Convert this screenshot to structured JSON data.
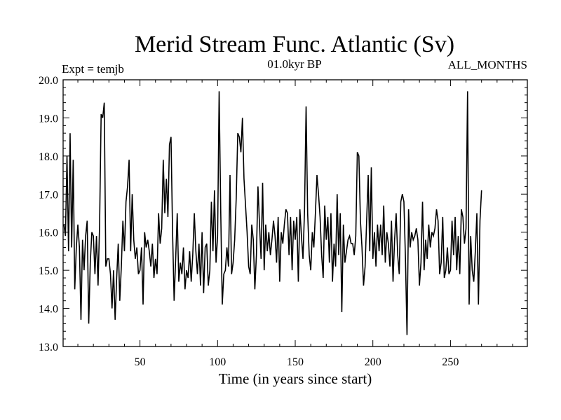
{
  "chart_data": {
    "type": "line",
    "title": "Merid Stream Func. Atlantic (Sv)",
    "subtitle_left": "Expt = temjb",
    "subtitle_center": "01.0kyr BP",
    "subtitle_right": "ALL_MONTHS",
    "xlabel": "Time (in years since start)",
    "ylabel": "",
    "xlim": [
      0.5,
      299.5
    ],
    "ylim": [
      13.0,
      20.0
    ],
    "xticks": [
      50,
      100,
      150,
      200,
      250
    ],
    "yticks": [
      "13.0",
      "14.0",
      "15.0",
      "16.0",
      "17.0",
      "18.0",
      "19.0",
      "20.0"
    ],
    "grid": false,
    "line_color": "#000000",
    "series": [
      {
        "values": [
          16.2,
          15.9,
          18.0,
          15.5,
          18.6,
          15.6,
          17.9,
          14.5,
          15.6,
          16.2,
          15.6,
          13.7,
          15.8,
          15.0,
          15.9,
          16.3,
          13.6,
          15.2,
          16.0,
          15.9,
          14.9,
          15.9,
          14.6,
          16.2,
          19.1,
          19.0,
          19.4,
          15.1,
          15.3,
          15.3,
          14.9,
          14.0,
          15.0,
          13.7,
          14.8,
          15.7,
          14.2,
          15.1,
          16.3,
          15.5,
          16.8,
          17.2,
          17.9,
          15.5,
          17.0,
          15.8,
          15.3,
          15.6,
          14.9,
          15.0,
          15.6,
          14.1,
          16.0,
          15.6,
          15.8,
          15.5,
          15.1,
          15.7,
          14.8,
          15.3,
          14.9,
          16.5,
          15.7,
          16.1,
          17.9,
          16.5,
          17.4,
          16.4,
          18.3,
          18.5,
          16.0,
          14.2,
          15.3,
          16.5,
          14.7,
          15.2,
          14.9,
          15.6,
          14.5,
          15.0,
          14.8,
          15.5,
          14.7,
          15.4,
          16.5,
          15.5,
          14.9,
          15.7,
          14.6,
          16.0,
          14.4,
          15.6,
          15.7,
          14.6,
          15.0,
          16.8,
          15.5,
          17.1,
          15.2,
          15.9,
          19.7,
          16.6,
          14.1,
          14.9,
          15.0,
          15.6,
          15.1,
          17.5,
          14.9,
          15.2,
          15.8,
          16.9,
          18.6,
          18.5,
          18.1,
          19.0,
          17.4,
          16.7,
          16.0,
          15.1,
          14.9,
          16.2,
          15.8,
          14.5,
          15.4,
          17.2,
          16.2,
          15.3,
          17.3,
          15.0,
          16.2,
          15.5,
          16.0,
          15.4,
          15.8,
          16.3,
          15.9,
          15.2,
          16.4,
          14.7,
          16.0,
          15.7,
          16.2,
          16.6,
          16.5,
          15.4,
          16.4,
          15.0,
          16.3,
          15.8,
          16.4,
          14.7,
          16.6,
          15.9,
          15.3,
          16.6,
          19.3,
          16.5,
          15.4,
          15.0,
          16.0,
          15.6,
          16.5,
          17.5,
          17.0,
          16.4,
          15.4,
          14.8,
          16.7,
          15.8,
          16.4,
          15.2,
          16.5,
          14.7,
          15.7,
          15.1,
          17.0,
          15.4,
          16.5,
          13.9,
          16.2,
          15.2,
          15.5,
          15.8,
          15.9,
          15.7,
          15.7,
          15.4,
          15.9,
          18.1,
          18.0,
          16.3,
          15.6,
          14.6,
          15.1,
          16.3,
          17.5,
          15.5,
          17.7,
          15.3,
          16.0,
          15.1,
          16.2,
          15.5,
          16.2,
          15.4,
          16.7,
          15.2,
          16.0,
          15.7,
          15.1,
          16.3,
          14.7,
          15.8,
          16.5,
          15.4,
          14.9,
          16.8,
          17.0,
          16.8,
          15.3,
          13.3,
          16.6,
          15.6,
          16.0,
          15.8,
          15.9,
          16.1,
          15.8,
          14.6,
          15.2,
          16.8,
          15.0,
          15.8,
          15.3,
          16.2,
          15.6,
          16.0,
          15.9,
          16.1,
          16.6,
          16.3,
          14.9,
          15.2,
          16.4,
          14.8,
          15.0,
          15.6,
          14.9,
          15.0,
          16.3,
          15.4,
          16.4,
          15.0,
          15.9,
          14.9,
          16.6,
          16.4,
          15.7,
          16.1,
          19.7,
          14.1,
          15.9,
          15.0,
          14.7,
          15.5,
          16.5,
          14.1,
          16.3,
          17.1
        ]
      }
    ]
  }
}
